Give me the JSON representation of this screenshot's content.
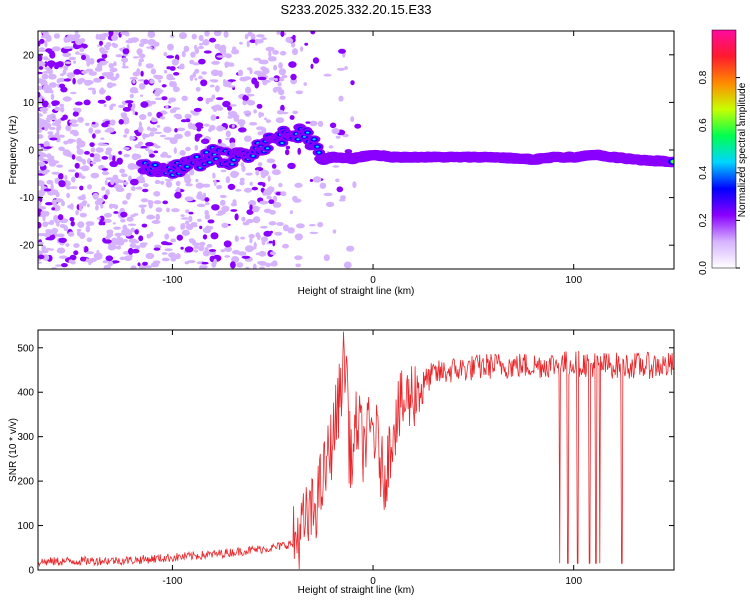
{
  "title": "S233.2025.332.20.15.E33",
  "colors": {
    "snr_line": "#e8262a",
    "frame": "#000000",
    "colormap": [
      "#ffffff",
      "#d6b3ff",
      "#8a00ff",
      "#0000ff",
      "#00d5ff",
      "#00ff50",
      "#c8ff00",
      "#ff8a00",
      "#ff1a2d",
      "#ff0aa0"
    ]
  },
  "chart_data": [
    {
      "type": "heatmap",
      "name": "spectrogram",
      "xlabel": "Height of straight line (km)",
      "ylabel": "Frequency (Hz)",
      "xlim": [
        -167,
        150
      ],
      "ylim": [
        -25,
        25
      ],
      "xticks": [
        -100,
        0,
        100
      ],
      "xtick_labels": [
        "-100",
        "0",
        "100"
      ],
      "yticks": [
        -20,
        -10,
        0,
        10,
        20
      ],
      "ytick_labels": [
        "-20",
        "-10",
        "0",
        "10",
        "20"
      ],
      "ridge_profile": {
        "x": [
          -100,
          -90,
          -80,
          -70,
          -60,
          -50,
          -40,
          -30,
          -25,
          -20,
          -10,
          0,
          10,
          20,
          40,
          60,
          80,
          90,
          100,
          110,
          120,
          130,
          150
        ],
        "hz": [
          -4,
          -3,
          -1,
          -2,
          0,
          2,
          4,
          2,
          -2,
          -1.5,
          -1.8,
          -1,
          -1.5,
          -1.5,
          -1.5,
          -1.5,
          -2,
          -1.5,
          -1.5,
          -1,
          -1.5,
          -2,
          -2.5
        ]
      },
      "colorbar": {
        "label": "Normalized spectral amplitude",
        "range": [
          0,
          1
        ],
        "ticks": [
          0.0,
          0.2,
          0.4,
          0.6,
          0.8
        ],
        "tick_labels": [
          "0.0",
          "0.2",
          "0.4",
          "0.6",
          "0.8"
        ]
      }
    },
    {
      "type": "line",
      "name": "snr",
      "xlabel": "Height of straight line (km)",
      "ylabel": "SNR (10 * v/v)",
      "xlim": [
        -167,
        150
      ],
      "ylim": [
        0,
        540
      ],
      "xticks": [
        -100,
        0,
        100
      ],
      "xtick_labels": [
        "-100",
        "0",
        "100"
      ],
      "yticks": [
        0,
        100,
        200,
        300,
        400,
        500
      ],
      "ytick_labels": [
        "0",
        "100",
        "200",
        "300",
        "400",
        "500"
      ],
      "series": [
        {
          "name": "SNR",
          "x": [
            -167,
            -150,
            -120,
            -100,
            -80,
            -60,
            -50,
            -40,
            -35,
            -30,
            -25,
            -20,
            -17,
            -15,
            -13,
            -12,
            -10,
            -8,
            -5,
            -3,
            0,
            3,
            5,
            8,
            10,
            15,
            20,
            30,
            40,
            60,
            80,
            100,
            120,
            150
          ],
          "y": [
            18,
            20,
            22,
            28,
            35,
            45,
            50,
            60,
            95,
            130,
            200,
            300,
            380,
            460,
            460,
            280,
            250,
            340,
            280,
            300,
            320,
            270,
            200,
            260,
            330,
            370,
            400,
            440,
            450,
            460,
            460,
            465,
            460,
            460
          ]
        }
      ],
      "dropouts_x": [
        93,
        97,
        102,
        108,
        111,
        113,
        124
      ]
    }
  ]
}
